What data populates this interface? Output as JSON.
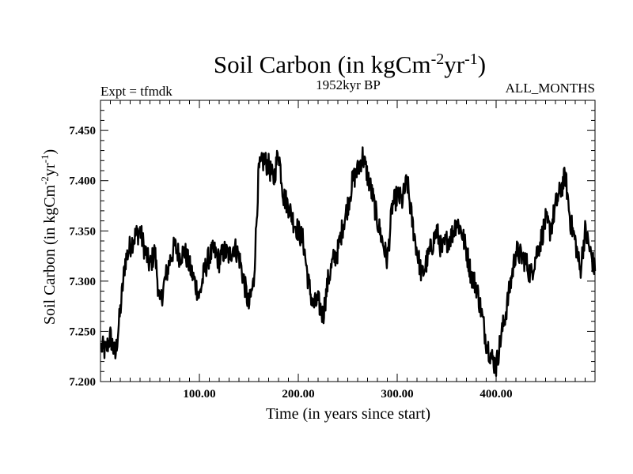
{
  "chart_data": {
    "type": "line",
    "title": {
      "prefix": "Soil Carbon (in kgCm",
      "sup1": "-2",
      "mid": "yr",
      "sup2": "-1",
      "suffix": ")"
    },
    "subtitle_left": "Expt = tfmdk",
    "subtitle_center": "1952kyr BP",
    "subtitle_right": "ALL_MONTHS",
    "xlabel": "Time (in years since start)",
    "ylabel": {
      "prefix": "Soil Carbon (in kgCm",
      "sup1": "-2",
      "mid": "yr",
      "sup2": "-1",
      "suffix": ")"
    },
    "xlim": [
      0,
      500
    ],
    "ylim": [
      7.2,
      7.48
    ],
    "x_ticks": [
      100,
      200,
      300,
      400
    ],
    "x_tick_labels": [
      "100.00",
      "200.00",
      "300.00",
      "400.00"
    ],
    "y_ticks": [
      7.2,
      7.25,
      7.3,
      7.35,
      7.4,
      7.45
    ],
    "y_tick_labels": [
      "7.200",
      "7.250",
      "7.300",
      "7.350",
      "7.400",
      "7.450"
    ],
    "grid": false,
    "line_color": "#000000",
    "series": [
      {
        "x": [
          1,
          5,
          10,
          15,
          20,
          25,
          30,
          35,
          40,
          45,
          50,
          55,
          60,
          65,
          70,
          75,
          80,
          85,
          90,
          95,
          100,
          105,
          110,
          115,
          120,
          125,
          130,
          135,
          140,
          145,
          150,
          155,
          160,
          165,
          170,
          175,
          180,
          185,
          190,
          195,
          200,
          205,
          210,
          215,
          220,
          225,
          230,
          235,
          240,
          245,
          250,
          255,
          260,
          265,
          270,
          275,
          280,
          285,
          290,
          295,
          300,
          305,
          310,
          315,
          320,
          325,
          330,
          335,
          340,
          345,
          350,
          355,
          360,
          365,
          370,
          375,
          380,
          385,
          390,
          395,
          400,
          405,
          410,
          415,
          420,
          425,
          430,
          435,
          440,
          445,
          450,
          455,
          460,
          465,
          470,
          475,
          480,
          485,
          490,
          495,
          500
        ],
        "values": [
          7.235,
          7.23,
          7.245,
          7.225,
          7.27,
          7.32,
          7.335,
          7.345,
          7.35,
          7.33,
          7.315,
          7.33,
          7.275,
          7.3,
          7.32,
          7.335,
          7.325,
          7.33,
          7.315,
          7.3,
          7.285,
          7.31,
          7.325,
          7.33,
          7.32,
          7.33,
          7.325,
          7.335,
          7.325,
          7.3,
          7.275,
          7.3,
          7.41,
          7.42,
          7.415,
          7.4,
          7.43,
          7.385,
          7.375,
          7.36,
          7.35,
          7.34,
          7.3,
          7.275,
          7.28,
          7.265,
          7.3,
          7.32,
          7.33,
          7.355,
          7.375,
          7.4,
          7.41,
          7.425,
          7.405,
          7.385,
          7.36,
          7.34,
          7.32,
          7.375,
          7.385,
          7.38,
          7.4,
          7.36,
          7.33,
          7.305,
          7.32,
          7.335,
          7.35,
          7.33,
          7.34,
          7.345,
          7.36,
          7.35,
          7.33,
          7.305,
          7.295,
          7.27,
          7.24,
          7.225,
          7.215,
          7.245,
          7.27,
          7.3,
          7.33,
          7.325,
          7.32,
          7.305,
          7.325,
          7.34,
          7.36,
          7.35,
          7.375,
          7.39,
          7.405,
          7.36,
          7.34,
          7.31,
          7.35,
          7.33,
          7.31
        ]
      }
    ]
  }
}
